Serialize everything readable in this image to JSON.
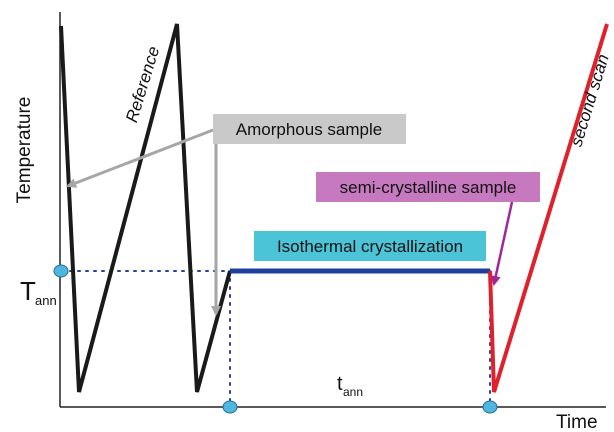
{
  "axes": {
    "y_label": "Temperature",
    "x_label": "Time",
    "t_ann_letter": "T",
    "t_ann_sub": "ann",
    "time_ann_letter": "t",
    "time_ann_sub": "ann"
  },
  "labels": {
    "reference": "Reference",
    "second_scan": "second scan"
  },
  "boxes": {
    "amorphous": "Amorphous sample",
    "semicrystalline": "semi-crystalline sample",
    "isothermal": "Isothermal crystallization"
  },
  "colors": {
    "reference_line": "#1a1a1a",
    "isothermal_line": "#1f3f9e",
    "second_scan_line": "#e0202a",
    "amorphous_box": "#c9c9c9",
    "amorphous_arrow": "#a6a6a6",
    "semicrystalline_box": "#c779c0",
    "semicrystalline_arrow": "#a0279a",
    "isothermal_box": "#4cc4d8",
    "marker": "#4fb6e0",
    "dotted": "#2a3f9a"
  }
}
